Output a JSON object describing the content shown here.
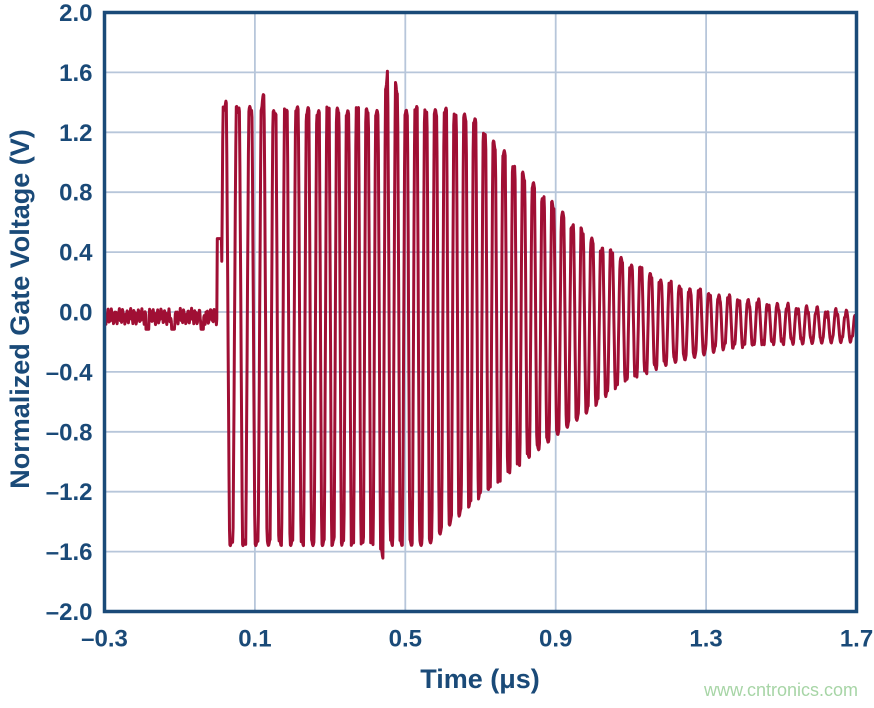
{
  "watermark": "www.cntronics.com",
  "colors": {
    "axis": "#1A4A78",
    "grid": "#B7C6DA",
    "trace": "#A00F34",
    "watermark_green": "#A7D5A6",
    "background": "#FFFFFF"
  },
  "chart_data": {
    "type": "line",
    "title": "",
    "xlabel": "Time (μs)",
    "ylabel": "Normalized Gate Voltage (V)",
    "xlim": [
      -0.3,
      1.7
    ],
    "ylim": [
      -2.0,
      2.0
    ],
    "grid": true,
    "legend": "none",
    "x_ticks": [
      -0.3,
      0.1,
      0.5,
      0.9,
      1.3,
      1.7
    ],
    "x_tick_labels": [
      "–0.3",
      "0.1",
      "0.5",
      "0.9",
      "1.3",
      "1.7"
    ],
    "y_ticks": [
      2.0,
      1.6,
      1.2,
      0.8,
      0.4,
      0.0,
      -0.4,
      -0.8,
      -1.2,
      -1.6,
      -2.0
    ],
    "y_tick_labels": [
      "2.0",
      "1.6",
      "1.2",
      "0.8",
      "0.4",
      "0.0",
      "–0.4",
      "–0.8",
      "–1.2",
      "–1.6",
      "–2.0"
    ],
    "series": [
      {
        "name": "normalized-gate-voltage",
        "description": "Flat baseline near 0 V, hard-switched ringing burst at t=0 clipped at about +1.34 V and -1.54 V until about 0.58 us, then exponential ring-down settling near -0.1 V by 1.7 us",
        "baseline_v": -0.03,
        "baseline_noise_v": 0.055,
        "baseline_dips_us": [
          -0.186,
          -0.118,
          -0.04
        ],
        "baseline_dip_v": -0.115,
        "pre_step": {
          "t_us": 0.0,
          "width_us": 0.011,
          "v": 0.49
        },
        "burst_start_us": 0.012,
        "ring_period_start_us": 0.036,
        "ring_period_end_us": 0.026,
        "period_settle_us": 0.3,
        "clip_top_v": 1.34,
        "clip_bottom_v": -1.54,
        "overdrive": 1.45,
        "spikes": [
          {
            "t_us": 0.032,
            "v": 1.47
          },
          {
            "t_us": 0.13,
            "v": 1.51
          },
          {
            "t_us": 0.443,
            "v": -1.64
          },
          {
            "t_us": 0.458,
            "v": 1.71
          },
          {
            "t_us": 0.474,
            "v": 1.52
          }
        ],
        "envelope_upper": [
          [
            0.012,
            1.34
          ],
          [
            0.58,
            1.34
          ],
          [
            0.67,
            1.3
          ],
          [
            0.75,
            1.08
          ],
          [
            0.83,
            0.86
          ],
          [
            0.91,
            0.66
          ],
          [
            0.99,
            0.48
          ],
          [
            1.07,
            0.35
          ],
          [
            1.2,
            0.18
          ],
          [
            1.35,
            0.09
          ],
          [
            1.5,
            0.03
          ],
          [
            1.7,
            -0.02
          ]
        ],
        "envelope_lower": [
          [
            0.012,
            -1.54
          ],
          [
            0.56,
            -1.54
          ],
          [
            0.67,
            -1.28
          ],
          [
            0.75,
            -1.12
          ],
          [
            0.83,
            -0.95
          ],
          [
            0.91,
            -0.79
          ],
          [
            0.99,
            -0.64
          ],
          [
            1.07,
            -0.47
          ],
          [
            1.2,
            -0.33
          ],
          [
            1.35,
            -0.23
          ],
          [
            1.5,
            -0.2
          ],
          [
            1.7,
            -0.18
          ]
        ]
      }
    ]
  }
}
